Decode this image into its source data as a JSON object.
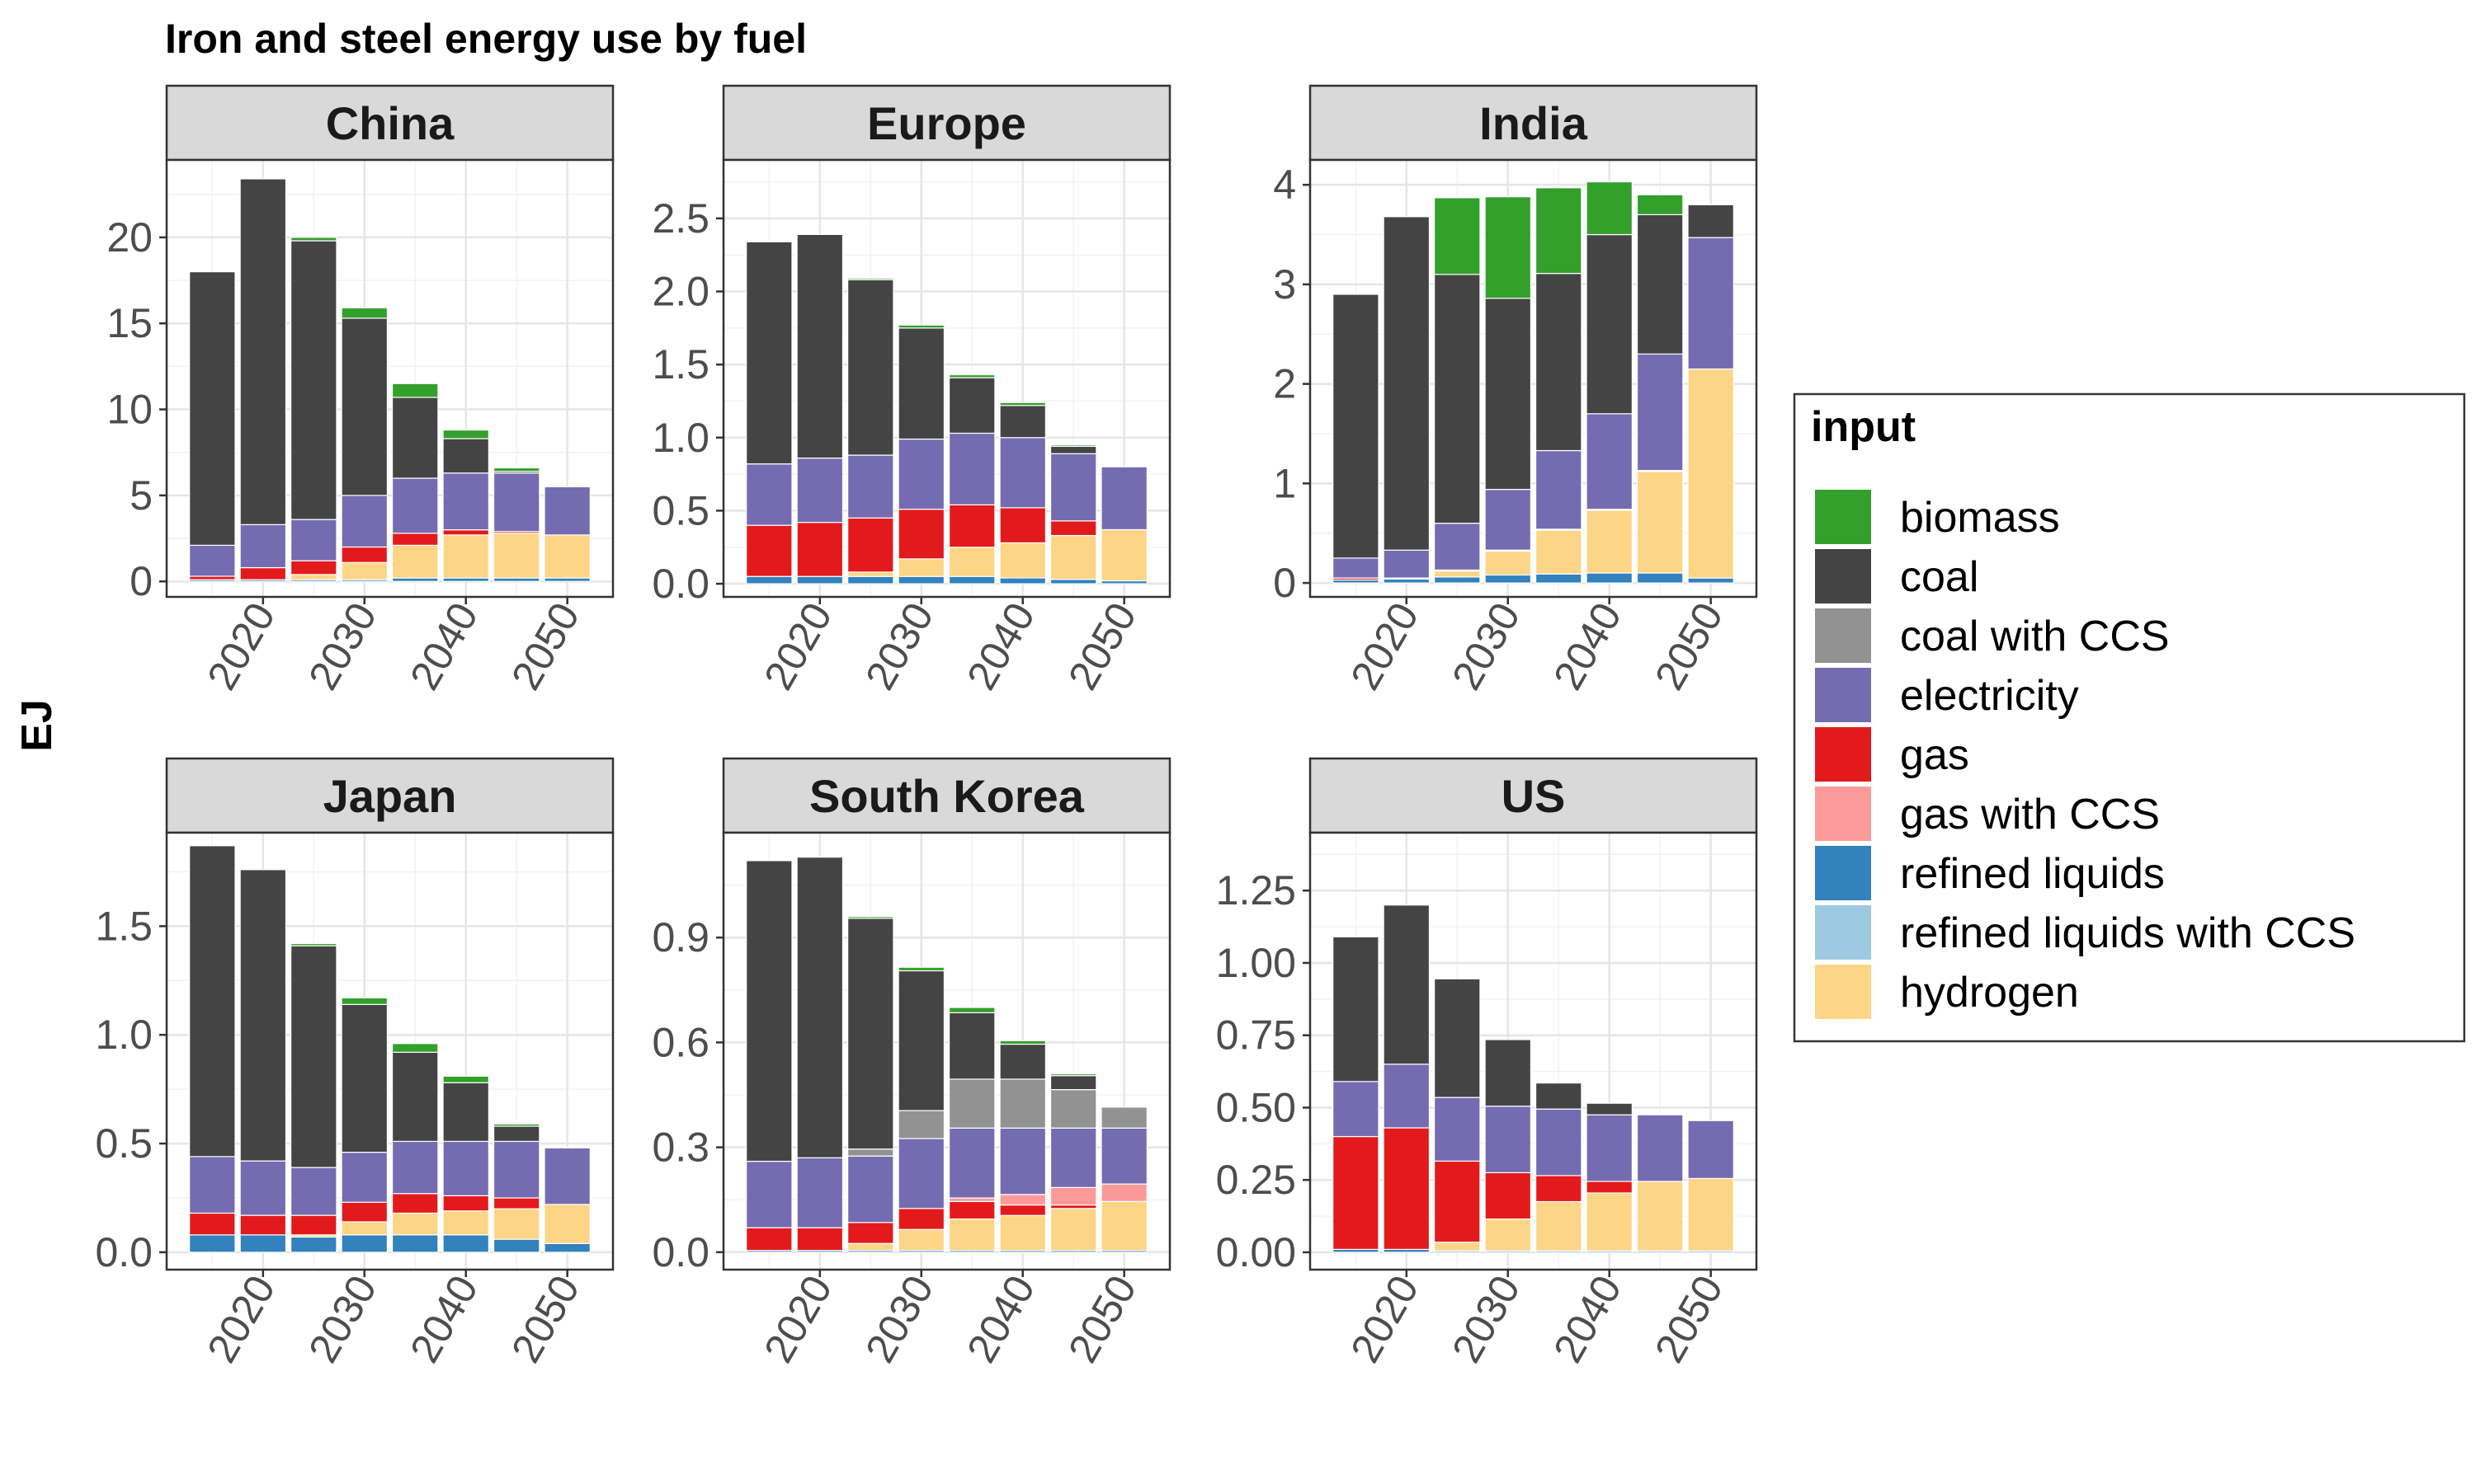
{
  "title": "Iron and steel energy use by fuel",
  "ylabel": "EJ",
  "legend": {
    "title": "input",
    "placement": "right",
    "items": [
      {
        "key": "biomass",
        "label": "biomass",
        "color": "#33a02c"
      },
      {
        "key": "coal",
        "label": "coal",
        "color": "#444444"
      },
      {
        "key": "coal_ccs",
        "label": "coal with CCS",
        "color": "#929292"
      },
      {
        "key": "electricity",
        "label": "electricity",
        "color": "#756bb1"
      },
      {
        "key": "gas",
        "label": "gas",
        "color": "#e31a1c"
      },
      {
        "key": "gas_ccs",
        "label": "gas with CCS",
        "color": "#fb9a99"
      },
      {
        "key": "refined_liquids",
        "label": "refined liquids",
        "color": "#3182bd"
      },
      {
        "key": "refined_liquids_ccs",
        "label": "refined liquids with CCS",
        "color": "#9ecae1"
      },
      {
        "key": "hydrogen",
        "label": "hydrogen",
        "color": "#fdd586"
      }
    ]
  },
  "chart_data": {
    "type": "bar",
    "stacked": true,
    "title": "Iron and steel energy use by fuel",
    "xlabel": "",
    "ylabel": "EJ",
    "grid": true,
    "legend_position": "right",
    "x": [
      2015,
      2020,
      2025,
      2030,
      2035,
      2040,
      2045,
      2050
    ],
    "xticks": [
      2020,
      2030,
      2040,
      2050
    ],
    "xlim": [
      2010.5,
      2054.5
    ],
    "stack_order": [
      "refined_liquids",
      "refined_liquids_ccs",
      "hydrogen",
      "gas",
      "gas_ccs",
      "electricity",
      "coal_ccs",
      "coal",
      "biomass"
    ],
    "panels": [
      {
        "name": "China",
        "ylim": [
          -0.9,
          24.5
        ],
        "yticks": [
          0,
          5,
          10,
          15,
          20
        ],
        "ytick_labels": [
          "0",
          "5",
          "10",
          "15",
          "20"
        ],
        "series": [
          {
            "key": "refined_liquids",
            "values": [
              0.1,
              0.1,
              0.1,
              0.1,
              0.2,
              0.2,
              0.2,
              0.2
            ]
          },
          {
            "key": "hydrogen",
            "values": [
              0,
              0,
              0.3,
              1.0,
              1.9,
              2.5,
              2.6,
              2.5
            ]
          },
          {
            "key": "gas",
            "values": [
              0.2,
              0.7,
              0.8,
              0.9,
              0.7,
              0.3,
              0.1,
              0
            ]
          },
          {
            "key": "electricity",
            "values": [
              1.8,
              2.5,
              2.4,
              3.0,
              3.2,
              3.3,
              3.4,
              2.8
            ]
          },
          {
            "key": "coal",
            "values": [
              15.9,
              20.1,
              16.2,
              10.3,
              4.7,
              2.0,
              0.1,
              0
            ]
          },
          {
            "key": "biomass",
            "values": [
              0,
              0,
              0.2,
              0.6,
              0.8,
              0.5,
              0.2,
              0
            ]
          }
        ]
      },
      {
        "name": "Europe",
        "ylim": [
          -0.09,
          2.9
        ],
        "yticks": [
          0,
          0.5,
          1.0,
          1.5,
          2.0,
          2.5
        ],
        "ytick_labels": [
          "0.0",
          "0.5",
          "1.0",
          "1.5",
          "2.0",
          "2.5"
        ],
        "series": [
          {
            "key": "refined_liquids",
            "values": [
              0.05,
              0.05,
              0.05,
              0.05,
              0.05,
              0.04,
              0.03,
              0.02
            ]
          },
          {
            "key": "hydrogen",
            "values": [
              0,
              0,
              0.03,
              0.12,
              0.2,
              0.24,
              0.3,
              0.35
            ]
          },
          {
            "key": "gas",
            "values": [
              0.35,
              0.37,
              0.37,
              0.34,
              0.29,
              0.24,
              0.1,
              0
            ]
          },
          {
            "key": "electricity",
            "values": [
              0.42,
              0.44,
              0.43,
              0.48,
              0.49,
              0.48,
              0.46,
              0.43
            ]
          },
          {
            "key": "coal",
            "values": [
              1.52,
              1.53,
              1.2,
              0.76,
              0.38,
              0.22,
              0.05,
              0
            ]
          },
          {
            "key": "biomass",
            "values": [
              0,
              0,
              0.01,
              0.02,
              0.02,
              0.02,
              0.01,
              0
            ]
          }
        ]
      },
      {
        "name": "India",
        "ylim": [
          -0.14,
          4.25
        ],
        "yticks": [
          0,
          1,
          2,
          3,
          4
        ],
        "ytick_labels": [
          "0",
          "1",
          "2",
          "3",
          "4"
        ],
        "series": [
          {
            "key": "refined_liquids",
            "values": [
              0.03,
              0.04,
              0.06,
              0.08,
              0.09,
              0.1,
              0.1,
              0.05
            ]
          },
          {
            "key": "hydrogen",
            "values": [
              0,
              0,
              0.06,
              0.24,
              0.44,
              0.63,
              1.02,
              2.1
            ]
          },
          {
            "key": "gas",
            "values": [
              0.02,
              0.01,
              0.01,
              0.01,
              0.01,
              0.01,
              0.01,
              0
            ]
          },
          {
            "key": "electricity",
            "values": [
              0.2,
              0.28,
              0.47,
              0.61,
              0.79,
              0.96,
              1.17,
              1.32
            ]
          },
          {
            "key": "coal",
            "values": [
              2.65,
              3.35,
              2.5,
              1.92,
              1.78,
              1.8,
              1.4,
              0.33
            ]
          },
          {
            "key": "biomass",
            "values": [
              0,
              0,
              0.77,
              1.02,
              0.86,
              0.53,
              0.2,
              0
            ]
          }
        ]
      },
      {
        "name": "Japan",
        "ylim": [
          -0.08,
          1.93
        ],
        "yticks": [
          0,
          0.5,
          1.0,
          1.5
        ],
        "ytick_labels": [
          "0.0",
          "0.5",
          "1.0",
          "1.5"
        ],
        "series": [
          {
            "key": "refined_liquids",
            "values": [
              0.08,
              0.08,
              0.07,
              0.08,
              0.08,
              0.08,
              0.06,
              0.04
            ]
          },
          {
            "key": "hydrogen",
            "values": [
              0,
              0,
              0.01,
              0.06,
              0.1,
              0.11,
              0.14,
              0.18
            ]
          },
          {
            "key": "gas",
            "values": [
              0.1,
              0.09,
              0.09,
              0.09,
              0.09,
              0.07,
              0.05,
              0
            ]
          },
          {
            "key": "electricity",
            "values": [
              0.26,
              0.25,
              0.22,
              0.23,
              0.24,
              0.25,
              0.26,
              0.26
            ]
          },
          {
            "key": "coal",
            "values": [
              1.43,
              1.34,
              1.02,
              0.68,
              0.41,
              0.27,
              0.07,
              0
            ]
          },
          {
            "key": "biomass",
            "values": [
              0,
              0,
              0.01,
              0.03,
              0.04,
              0.03,
              0.01,
              0
            ]
          }
        ]
      },
      {
        "name": "South Korea",
        "ylim": [
          -0.05,
          1.2
        ],
        "yticks": [
          0,
          0.3,
          0.6,
          0.9
        ],
        "ytick_labels": [
          "0.0",
          "0.3",
          "0.6",
          "0.9"
        ],
        "series": [
          {
            "key": "refined_liquids",
            "values": [
              0.005,
              0.005,
              0.005,
              0.005,
              0.005,
              0.005,
              0.005,
              0.005
            ]
          },
          {
            "key": "hydrogen",
            "values": [
              0,
              0,
              0.02,
              0.06,
              0.09,
              0.1,
              0.12,
              0.14
            ]
          },
          {
            "key": "gas",
            "values": [
              0.065,
              0.065,
              0.06,
              0.06,
              0.05,
              0.03,
              0.01,
              0
            ]
          },
          {
            "key": "gas_ccs",
            "values": [
              0,
              0,
              0,
              0,
              0.01,
              0.03,
              0.05,
              0.05
            ]
          },
          {
            "key": "electricity",
            "values": [
              0.19,
              0.2,
              0.19,
              0.2,
              0.2,
              0.19,
              0.17,
              0.16
            ]
          },
          {
            "key": "coal_ccs",
            "values": [
              0,
              0,
              0.02,
              0.08,
              0.14,
              0.14,
              0.11,
              0.06
            ]
          },
          {
            "key": "coal",
            "values": [
              0.86,
              0.86,
              0.66,
              0.4,
              0.19,
              0.1,
              0.04,
              0
            ]
          },
          {
            "key": "biomass",
            "values": [
              0,
              0,
              0.005,
              0.01,
              0.015,
              0.01,
              0.005,
              0
            ]
          }
        ]
      },
      {
        "name": "US",
        "ylim": [
          -0.06,
          1.45
        ],
        "yticks": [
          0,
          0.25,
          0.5,
          0.75,
          1.0,
          1.25
        ],
        "ytick_labels": [
          "0.00",
          "0.25",
          "0.50",
          "0.75",
          "1.00",
          "1.25"
        ],
        "series": [
          {
            "key": "refined_liquids",
            "values": [
              0.01,
              0.01,
              0.005,
              0.005,
              0.005,
              0.005,
              0.005,
              0.005
            ]
          },
          {
            "key": "hydrogen",
            "values": [
              0,
              0,
              0.03,
              0.11,
              0.17,
              0.2,
              0.24,
              0.25
            ]
          },
          {
            "key": "gas",
            "values": [
              0.39,
              0.42,
              0.28,
              0.16,
              0.09,
              0.04,
              0,
              0
            ]
          },
          {
            "key": "electricity",
            "values": [
              0.19,
              0.22,
              0.22,
              0.23,
              0.23,
              0.23,
              0.23,
              0.2
            ]
          },
          {
            "key": "coal",
            "values": [
              0.5,
              0.55,
              0.41,
              0.23,
              0.09,
              0.04,
              0,
              0
            ]
          }
        ]
      }
    ]
  }
}
